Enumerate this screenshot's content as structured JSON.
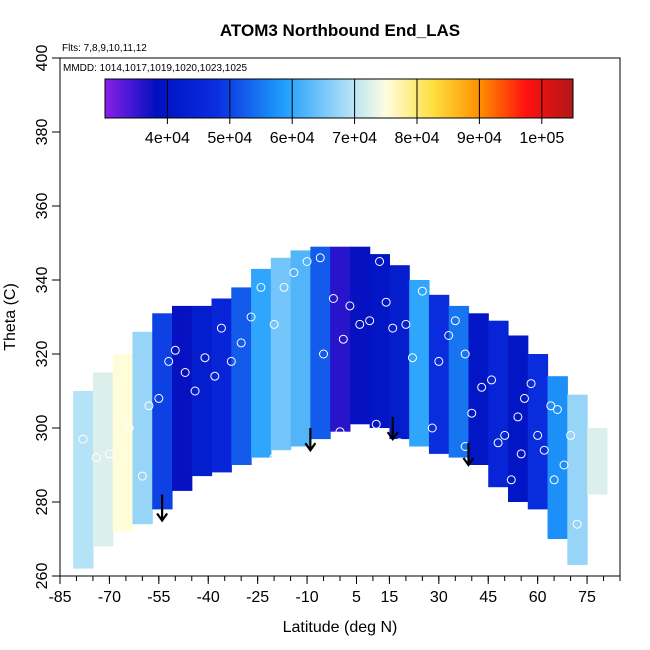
{
  "chart_data": {
    "type": "heatmap",
    "title": "ATOM3 Northbound End_LAS",
    "subtitle_flights": "Flts: 7,8,9,10,11,12",
    "subtitle_dates": "MMDD: 1014,1017,1019,1020,1023,1025",
    "xlabel": "Latitude (deg N)",
    "ylabel": "Theta (C)",
    "xlim": [
      -85,
      85
    ],
    "ylim": [
      260,
      400
    ],
    "x_ticks": [
      -85,
      -70,
      -55,
      -40,
      -25,
      -10,
      5,
      15,
      30,
      45,
      60,
      75
    ],
    "y_ticks": [
      260,
      280,
      300,
      320,
      340,
      360,
      380,
      400
    ],
    "colorbar": {
      "range": [
        30000,
        105000
      ],
      "ticks": [
        40000,
        50000,
        60000,
        70000,
        80000,
        90000,
        100000
      ],
      "tick_labels": [
        "4e+04",
        "5e+04",
        "6e+04",
        "7e+04",
        "8e+04",
        "9e+04",
        "1e+05"
      ],
      "colors": [
        "#8a1fe6",
        "#0010c0",
        "#0a2fe0",
        "#1e9dfb",
        "#aee0f8",
        "#fffde0",
        "#ffe040",
        "#ff9000",
        "#ff1010",
        "#b01818"
      ]
    },
    "columns": [
      {
        "x": -78,
        "low": 262,
        "high": 310,
        "v": 64000
      },
      {
        "x": -72,
        "low": 268,
        "high": 315,
        "v": 68000
      },
      {
        "x": -66,
        "low": 272,
        "high": 320,
        "v": 72000
      },
      {
        "x": -60,
        "low": 274,
        "high": 326,
        "v": 62000
      },
      {
        "x": -54,
        "low": 278,
        "high": 331,
        "v": 48000
      },
      {
        "x": -48,
        "low": 283,
        "high": 333,
        "v": 38000
      },
      {
        "x": -42,
        "low": 287,
        "high": 333,
        "v": 42000
      },
      {
        "x": -36,
        "low": 288,
        "high": 335,
        "v": 44000
      },
      {
        "x": -30,
        "low": 290,
        "high": 338,
        "v": 50000
      },
      {
        "x": -24,
        "low": 292,
        "high": 343,
        "v": 56000
      },
      {
        "x": -18,
        "low": 294,
        "high": 346,
        "v": 60000
      },
      {
        "x": -12,
        "low": 295,
        "high": 348,
        "v": 58000
      },
      {
        "x": -6,
        "low": 297,
        "high": 349,
        "v": 50000
      },
      {
        "x": 0,
        "low": 299,
        "high": 349,
        "v": 36000
      },
      {
        "x": 6,
        "low": 301,
        "high": 349,
        "v": 38000
      },
      {
        "x": 12,
        "low": 300,
        "high": 347,
        "v": 40000
      },
      {
        "x": 18,
        "low": 297,
        "high": 344,
        "v": 42000
      },
      {
        "x": 24,
        "low": 295,
        "high": 340,
        "v": 56000
      },
      {
        "x": 30,
        "low": 293,
        "high": 336,
        "v": 46000
      },
      {
        "x": 36,
        "low": 292,
        "high": 333,
        "v": 52000
      },
      {
        "x": 42,
        "low": 290,
        "high": 331,
        "v": 40000
      },
      {
        "x": 48,
        "low": 284,
        "high": 329,
        "v": 44000
      },
      {
        "x": 54,
        "low": 280,
        "high": 325,
        "v": 40000
      },
      {
        "x": 60,
        "low": 278,
        "high": 320,
        "v": 46000
      },
      {
        "x": 66,
        "low": 270,
        "high": 314,
        "v": 54000
      },
      {
        "x": 72,
        "low": 263,
        "high": 309,
        "v": 62000
      },
      {
        "x": 78,
        "low": 282,
        "high": 300,
        "v": 68000
      }
    ],
    "points": [
      [
        -78,
        297
      ],
      [
        -74,
        292
      ],
      [
        -70,
        293
      ],
      [
        -64,
        300
      ],
      [
        -58,
        306
      ],
      [
        -55,
        308
      ],
      [
        -52,
        318
      ],
      [
        -50,
        321
      ],
      [
        -47,
        315
      ],
      [
        -44,
        310
      ],
      [
        -41,
        319
      ],
      [
        -38,
        314
      ],
      [
        -36,
        327
      ],
      [
        -33,
        318
      ],
      [
        -30,
        323
      ],
      [
        -27,
        330
      ],
      [
        -24,
        338
      ],
      [
        -20,
        328
      ],
      [
        -17,
        338
      ],
      [
        -14,
        342
      ],
      [
        -10,
        345
      ],
      [
        -6,
        346
      ],
      [
        -2,
        335
      ],
      [
        1,
        324
      ],
      [
        3,
        333
      ],
      [
        6,
        328
      ],
      [
        9,
        329
      ],
      [
        11,
        301
      ],
      [
        12,
        345
      ],
      [
        14,
        334
      ],
      [
        16,
        327
      ],
      [
        20,
        328
      ],
      [
        22,
        319
      ],
      [
        25,
        337
      ],
      [
        30,
        318
      ],
      [
        33,
        325
      ],
      [
        35,
        329
      ],
      [
        38,
        320
      ],
      [
        40,
        304
      ],
      [
        43,
        311
      ],
      [
        46,
        313
      ],
      [
        48,
        296
      ],
      [
        50,
        298
      ],
      [
        52,
        286
      ],
      [
        54,
        303
      ],
      [
        56,
        308
      ],
      [
        58,
        312
      ],
      [
        60,
        298
      ],
      [
        62,
        294
      ],
      [
        64,
        306
      ],
      [
        66,
        305
      ],
      [
        68,
        290
      ],
      [
        70,
        298
      ],
      [
        72,
        274
      ],
      [
        -60,
        287
      ],
      [
        -20,
        292
      ],
      [
        -5,
        320
      ],
      [
        0,
        299
      ],
      [
        8,
        292
      ],
      [
        18,
        296
      ],
      [
        28,
        300
      ],
      [
        38,
        295
      ],
      [
        55,
        293
      ],
      [
        65,
        286
      ]
    ],
    "arrows": [
      {
        "x": -54,
        "y_start": 282,
        "y_end": 275
      },
      {
        "x": -9,
        "y_start": 300,
        "y_end": 294
      },
      {
        "x": 16,
        "y_start": 303,
        "y_end": 297
      },
      {
        "x": 39,
        "y_start": 296,
        "y_end": 290
      }
    ]
  }
}
